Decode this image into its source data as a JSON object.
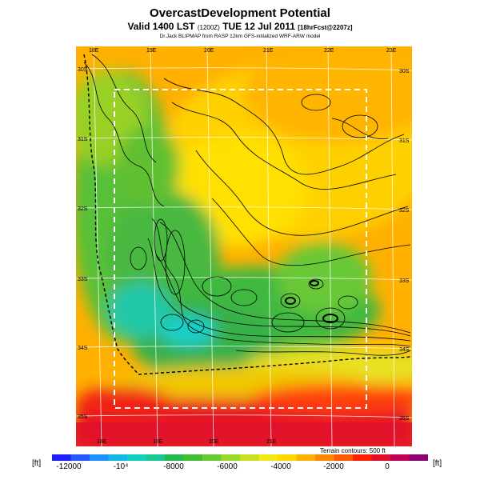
{
  "header": {
    "title": "OvercastDevelopment Potential",
    "subtitle_main": "Valid 1400 LST",
    "subtitle_time": "(1200Z)",
    "subtitle_date": "TUE 12 Jul 2011",
    "subtitle_fcst": "[18hrFcst@2207z]",
    "credit": "Dr.Jack BLIPMAP from RASP 12km GFS-initialized WRF-ARW model"
  },
  "map": {
    "lon_labels_top": [
      "18E",
      "19E",
      "20E",
      "21E",
      "22E",
      "23E"
    ],
    "lon_labels_bottom": [
      "18E",
      "19E",
      "20E",
      "21E"
    ],
    "lat_labels_left": [
      "30S",
      "31S",
      "32S",
      "33S",
      "34S",
      "35S"
    ],
    "lat_labels_right": [
      "30S",
      "31S",
      "32S",
      "33S",
      "34S",
      "35S"
    ],
    "terrain_note": "Terrain contours: 500 ft"
  },
  "colorbar": {
    "unit_left": "[ft]",
    "unit_right": "[ft]",
    "tick_labels": [
      "-12000",
      "-10⁴",
      "-8000",
      "-6000",
      "-4000",
      "-2000",
      "0"
    ],
    "colors": [
      "#2020ff",
      "#2a58ff",
      "#1e90ff",
      "#14b8e8",
      "#12d0c0",
      "#18c890",
      "#28b850",
      "#40c030",
      "#68cc30",
      "#98d828",
      "#c8e020",
      "#f0e818",
      "#ffd800",
      "#ffb000",
      "#ff8800",
      "#ff5a00",
      "#ff2000",
      "#e0102a",
      "#c00050",
      "#900070"
    ]
  }
}
